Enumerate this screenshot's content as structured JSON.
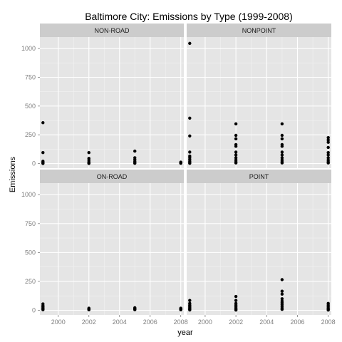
{
  "chart_data": {
    "type": "scatter",
    "title": "Baltimore City: Emissions by Type (1999-2008)",
    "xlabel": "year",
    "ylabel": "Emissions",
    "xlim": [
      1998.8,
      2008.2
    ],
    "ylim": [
      -40,
      1100
    ],
    "x_ticks": [
      2000,
      2002,
      2004,
      2006,
      2008
    ],
    "y_ticks": [
      0,
      250,
      500,
      750,
      1000
    ],
    "grid": true,
    "colors": {
      "panel_background": "#e5e5e5",
      "grid_major": "#ffffff",
      "grid_minor": "#f2f2f2",
      "strip_background": "#cccccc",
      "point": "#000000"
    },
    "facets": [
      {
        "label": "NON-ROAD",
        "points": [
          {
            "x": 1999,
            "y": 355
          },
          {
            "x": 1999,
            "y": 95
          },
          {
            "x": 1999,
            "y": 20
          },
          {
            "x": 1999,
            "y": 10
          },
          {
            "x": 1999,
            "y": 4
          },
          {
            "x": 1999,
            "y": 1
          },
          {
            "x": 2002,
            "y": 95
          },
          {
            "x": 2002,
            "y": 45
          },
          {
            "x": 2002,
            "y": 30
          },
          {
            "x": 2002,
            "y": 15
          },
          {
            "x": 2002,
            "y": 5
          },
          {
            "x": 2002,
            "y": 1
          },
          {
            "x": 2005,
            "y": 108
          },
          {
            "x": 2005,
            "y": 50
          },
          {
            "x": 2005,
            "y": 35
          },
          {
            "x": 2005,
            "y": 20
          },
          {
            "x": 2005,
            "y": 8
          },
          {
            "x": 2005,
            "y": 2
          },
          {
            "x": 2008,
            "y": 12
          },
          {
            "x": 2008,
            "y": 6
          },
          {
            "x": 2008,
            "y": 2
          }
        ]
      },
      {
        "label": "NONPOINT",
        "points": [
          {
            "x": 1999,
            "y": 1045
          },
          {
            "x": 1999,
            "y": 395
          },
          {
            "x": 1999,
            "y": 240
          },
          {
            "x": 1999,
            "y": 100
          },
          {
            "x": 1999,
            "y": 65
          },
          {
            "x": 1999,
            "y": 50
          },
          {
            "x": 1999,
            "y": 35
          },
          {
            "x": 1999,
            "y": 20
          },
          {
            "x": 1999,
            "y": 8
          },
          {
            "x": 1999,
            "y": 2
          },
          {
            "x": 2002,
            "y": 345
          },
          {
            "x": 2002,
            "y": 245
          },
          {
            "x": 2002,
            "y": 215
          },
          {
            "x": 2002,
            "y": 165
          },
          {
            "x": 2002,
            "y": 150
          },
          {
            "x": 2002,
            "y": 100
          },
          {
            "x": 2002,
            "y": 75
          },
          {
            "x": 2002,
            "y": 50
          },
          {
            "x": 2002,
            "y": 30
          },
          {
            "x": 2002,
            "y": 15
          },
          {
            "x": 2002,
            "y": 5
          },
          {
            "x": 2005,
            "y": 345
          },
          {
            "x": 2005,
            "y": 245
          },
          {
            "x": 2005,
            "y": 215
          },
          {
            "x": 2005,
            "y": 165
          },
          {
            "x": 2005,
            "y": 150
          },
          {
            "x": 2005,
            "y": 100
          },
          {
            "x": 2005,
            "y": 75
          },
          {
            "x": 2005,
            "y": 50
          },
          {
            "x": 2005,
            "y": 30
          },
          {
            "x": 2005,
            "y": 15
          },
          {
            "x": 2005,
            "y": 5
          },
          {
            "x": 2008,
            "y": 225
          },
          {
            "x": 2008,
            "y": 205
          },
          {
            "x": 2008,
            "y": 185
          },
          {
            "x": 2008,
            "y": 140
          },
          {
            "x": 2008,
            "y": 95
          },
          {
            "x": 2008,
            "y": 75
          },
          {
            "x": 2008,
            "y": 50
          },
          {
            "x": 2008,
            "y": 30
          },
          {
            "x": 2008,
            "y": 15
          },
          {
            "x": 2008,
            "y": 5
          }
        ]
      },
      {
        "label": "ON-ROAD",
        "points": [
          {
            "x": 1999,
            "y": 55
          },
          {
            "x": 1999,
            "y": 40
          },
          {
            "x": 1999,
            "y": 30
          },
          {
            "x": 1999,
            "y": 20
          },
          {
            "x": 1999,
            "y": 12
          },
          {
            "x": 1999,
            "y": 5
          },
          {
            "x": 2002,
            "y": 18
          },
          {
            "x": 2002,
            "y": 12
          },
          {
            "x": 2002,
            "y": 8
          },
          {
            "x": 2002,
            "y": 4
          },
          {
            "x": 2005,
            "y": 22
          },
          {
            "x": 2005,
            "y": 15
          },
          {
            "x": 2005,
            "y": 10
          },
          {
            "x": 2005,
            "y": 5
          },
          {
            "x": 2008,
            "y": 18
          },
          {
            "x": 2008,
            "y": 12
          },
          {
            "x": 2008,
            "y": 8
          },
          {
            "x": 2008,
            "y": 4
          }
        ]
      },
      {
        "label": "POINT",
        "points": [
          {
            "x": 1999,
            "y": 85
          },
          {
            "x": 1999,
            "y": 60
          },
          {
            "x": 1999,
            "y": 45
          },
          {
            "x": 1999,
            "y": 35
          },
          {
            "x": 1999,
            "y": 25
          },
          {
            "x": 1999,
            "y": 15
          },
          {
            "x": 1999,
            "y": 8
          },
          {
            "x": 1999,
            "y": 3
          },
          {
            "x": 2002,
            "y": 120
          },
          {
            "x": 2002,
            "y": 85
          },
          {
            "x": 2002,
            "y": 60
          },
          {
            "x": 2002,
            "y": 45
          },
          {
            "x": 2002,
            "y": 30
          },
          {
            "x": 2002,
            "y": 18
          },
          {
            "x": 2002,
            "y": 8
          },
          {
            "x": 2002,
            "y": 2
          },
          {
            "x": 2005,
            "y": 265
          },
          {
            "x": 2005,
            "y": 165
          },
          {
            "x": 2005,
            "y": 140
          },
          {
            "x": 2005,
            "y": 100
          },
          {
            "x": 2005,
            "y": 80
          },
          {
            "x": 2005,
            "y": 65
          },
          {
            "x": 2005,
            "y": 50
          },
          {
            "x": 2005,
            "y": 35
          },
          {
            "x": 2005,
            "y": 20
          },
          {
            "x": 2005,
            "y": 8
          },
          {
            "x": 2008,
            "y": 60
          },
          {
            "x": 2008,
            "y": 45
          },
          {
            "x": 2008,
            "y": 30
          },
          {
            "x": 2008,
            "y": 18
          },
          {
            "x": 2008,
            "y": 8
          },
          {
            "x": 2008,
            "y": 2
          }
        ]
      }
    ]
  }
}
